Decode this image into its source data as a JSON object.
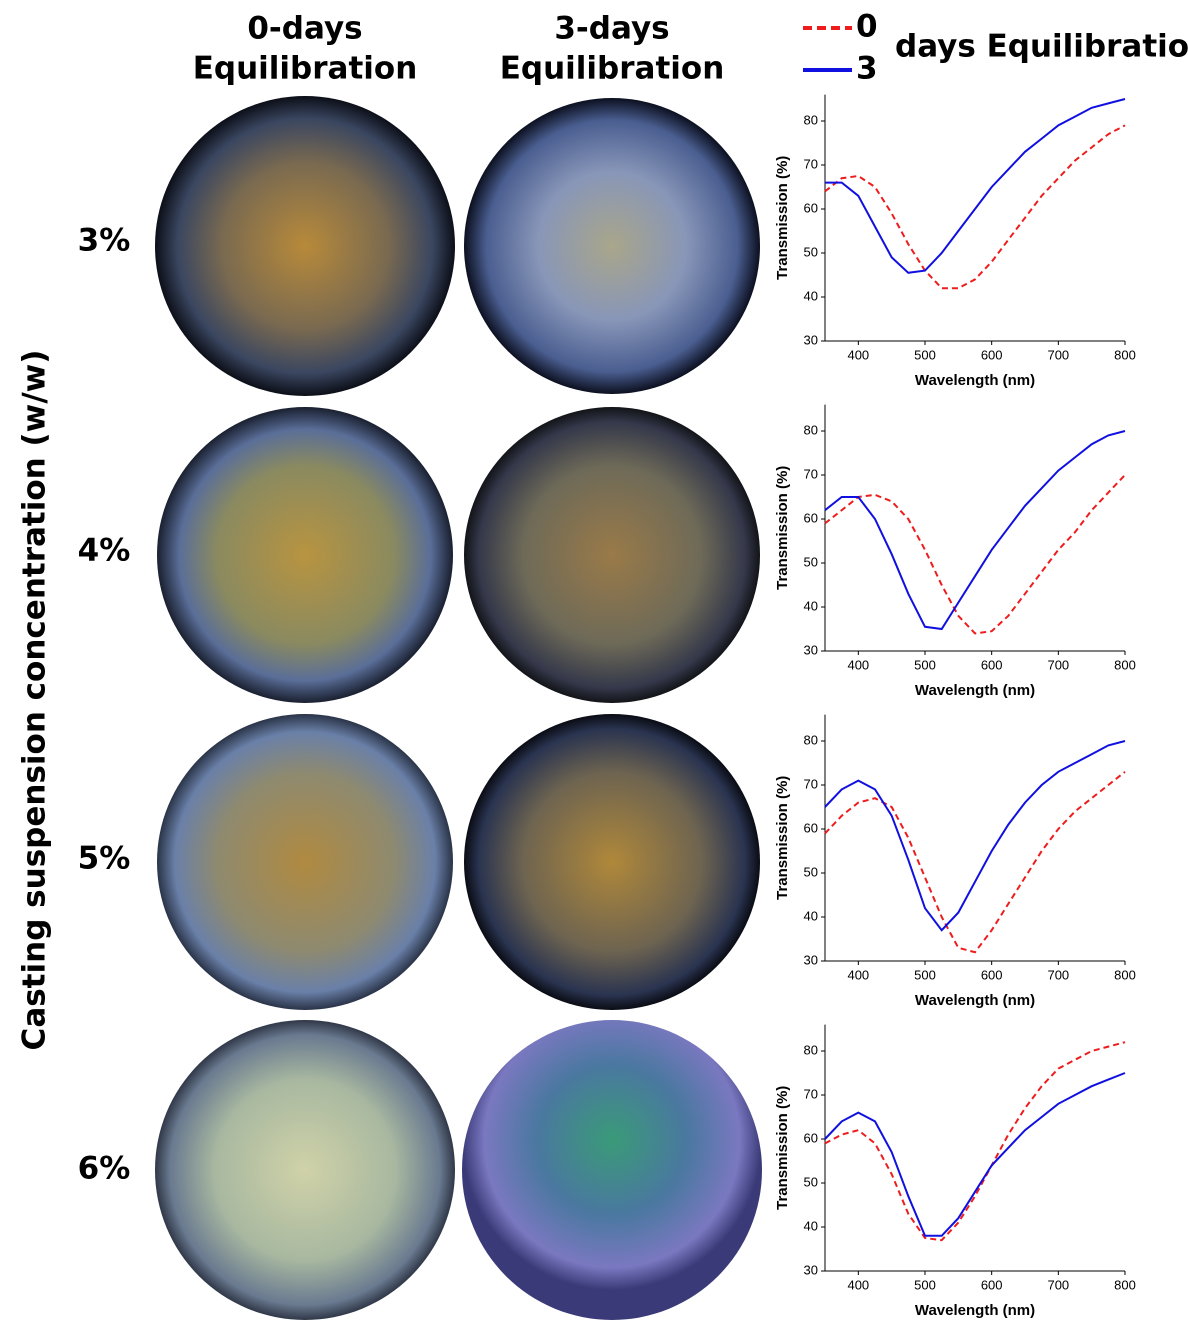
{
  "column_headers": [
    [
      "0-days",
      "Equilibration"
    ],
    [
      "3-days",
      "Equilibration"
    ]
  ],
  "row_labels": [
    "3%",
    "4%",
    "5%",
    "6%"
  ],
  "side_label": "Casting suspension concentration (w/w)",
  "legend": {
    "title": "days Equilibration"
  },
  "chart_data": [
    {
      "type": "line",
      "x_label": "Wavelength (nm)",
      "y_label": "Transmission (%)",
      "x": [
        350,
        375,
        400,
        425,
        450,
        475,
        500,
        525,
        550,
        575,
        600,
        625,
        650,
        675,
        700,
        725,
        750,
        775,
        800
      ],
      "series": [
        {
          "name": "0",
          "color": "#ee1c1c",
          "dashed": true,
          "values": [
            64,
            67,
            67.5,
            65,
            59,
            52,
            46,
            42,
            42,
            44,
            48,
            53,
            58,
            63,
            67,
            71,
            74,
            77,
            79
          ]
        },
        {
          "name": "3",
          "color": "#1010e0",
          "dashed": false,
          "values": [
            66,
            66,
            63,
            56,
            49,
            45.5,
            46,
            50,
            55,
            60,
            65,
            69,
            73,
            76,
            79,
            81,
            83,
            84,
            85
          ]
        }
      ],
      "xlim": [
        350,
        800
      ],
      "ylim": [
        30,
        86
      ],
      "xticks": [
        400,
        500,
        600,
        700,
        800
      ],
      "yticks": [
        30,
        40,
        50,
        60,
        70,
        80
      ]
    },
    {
      "type": "line",
      "x_label": "Wavelength (nm)",
      "y_label": "Transmission (%)",
      "x": [
        350,
        375,
        400,
        425,
        450,
        475,
        500,
        525,
        550,
        575,
        600,
        625,
        650,
        675,
        700,
        725,
        750,
        775,
        800
      ],
      "series": [
        {
          "color": "#ee1c1c",
          "dashed": true,
          "values": [
            59,
            62,
            65,
            65.5,
            64,
            60,
            53,
            45,
            38,
            34,
            34.5,
            38,
            43,
            48,
            53,
            57,
            62,
            66,
            70
          ]
        },
        {
          "color": "#1010e0",
          "dashed": false,
          "values": [
            62,
            65,
            65,
            60,
            52,
            43,
            35.5,
            35,
            41,
            47,
            53,
            58,
            63,
            67,
            71,
            74,
            77,
            79,
            80
          ]
        }
      ],
      "xlim": [
        350,
        800
      ],
      "ylim": [
        30,
        86
      ],
      "xticks": [
        400,
        500,
        600,
        700,
        800
      ],
      "yticks": [
        30,
        40,
        50,
        60,
        70,
        80
      ]
    },
    {
      "type": "line",
      "x_label": "Wavelength (nm)",
      "y_label": "Transmission (%)",
      "x": [
        350,
        375,
        400,
        425,
        450,
        475,
        500,
        525,
        550,
        575,
        600,
        625,
        650,
        675,
        700,
        725,
        750,
        775,
        800
      ],
      "series": [
        {
          "color": "#ee1c1c",
          "dashed": true,
          "values": [
            59,
            63,
            66,
            67,
            65,
            58,
            49,
            40,
            33,
            32,
            37,
            43,
            49,
            55,
            60,
            64,
            67,
            70,
            73
          ]
        },
        {
          "color": "#1010e0",
          "dashed": false,
          "values": [
            65,
            69,
            71,
            69,
            63,
            53,
            42,
            37,
            41,
            48,
            55,
            61,
            66,
            70,
            73,
            75,
            77,
            79,
            80
          ]
        }
      ],
      "xlim": [
        350,
        800
      ],
      "ylim": [
        30,
        86
      ],
      "xticks": [
        400,
        500,
        600,
        700,
        800
      ],
      "yticks": [
        30,
        40,
        50,
        60,
        70,
        80
      ]
    },
    {
      "type": "line",
      "x_label": "Wavelength (nm)",
      "y_label": "Transmission (%)",
      "x": [
        350,
        375,
        400,
        425,
        450,
        475,
        500,
        525,
        550,
        575,
        600,
        625,
        650,
        675,
        700,
        725,
        750,
        775,
        800
      ],
      "series": [
        {
          "color": "#ee1c1c",
          "dashed": true,
          "values": [
            59,
            61,
            62,
            59,
            52,
            43,
            37.5,
            37,
            41,
            47,
            54,
            61,
            67,
            72,
            76,
            78,
            80,
            81,
            82
          ]
        },
        {
          "color": "#1010e0",
          "dashed": false,
          "values": [
            60,
            64,
            66,
            64,
            57,
            47,
            38,
            38,
            42,
            48,
            54,
            58,
            62,
            65,
            68,
            70,
            72,
            73.5,
            75
          ]
        }
      ],
      "xlim": [
        350,
        800
      ],
      "ylim": [
        30,
        86
      ],
      "xticks": [
        400,
        500,
        600,
        700,
        800
      ],
      "yticks": [
        30,
        40,
        50,
        60,
        70,
        80
      ]
    }
  ]
}
